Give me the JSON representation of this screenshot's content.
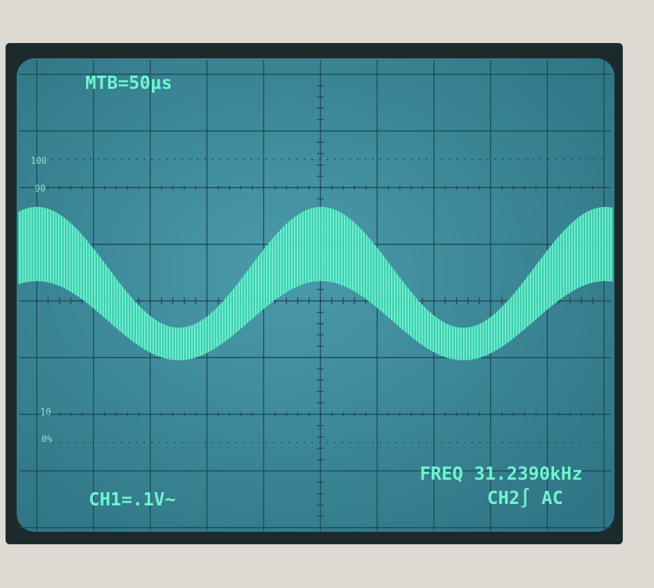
{
  "screen": {
    "timebase": "MTB=50μs",
    "scale_labels": {
      "top": "100",
      "upper": "90",
      "lower": "10",
      "bottom": "0%"
    },
    "frequency": "FREQ 31.2390kHz",
    "channel1": "CH1=.1V∼",
    "channel2": "CH2∫ AC"
  }
}
